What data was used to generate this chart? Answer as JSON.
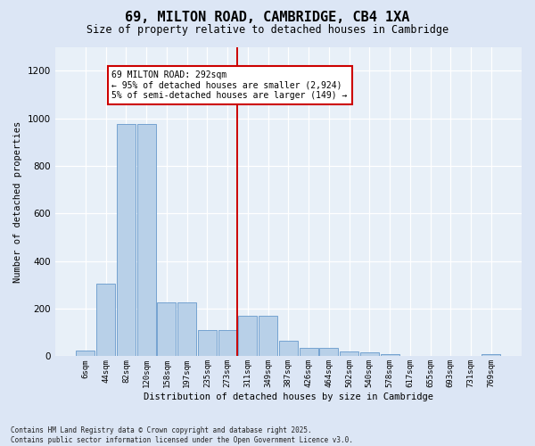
{
  "title_line1": "69, MILTON ROAD, CAMBRIDGE, CB4 1XA",
  "title_line2": "Size of property relative to detached houses in Cambridge",
  "xlabel": "Distribution of detached houses by size in Cambridge",
  "ylabel": "Number of detached properties",
  "footnote1": "Contains HM Land Registry data © Crown copyright and database right 2025.",
  "footnote2": "Contains public sector information licensed under the Open Government Licence v3.0.",
  "annotation_title": "69 MILTON ROAD: 292sqm",
  "annotation_line2": "← 95% of detached houses are smaller (2,924)",
  "annotation_line3": "5% of semi-detached houses are larger (149) →",
  "categories": [
    "6sqm",
    "44sqm",
    "82sqm",
    "120sqm",
    "158sqm",
    "197sqm",
    "235sqm",
    "273sqm",
    "311sqm",
    "349sqm",
    "387sqm",
    "426sqm",
    "464sqm",
    "502sqm",
    "540sqm",
    "578sqm",
    "617sqm",
    "655sqm",
    "693sqm",
    "731sqm",
    "769sqm"
  ],
  "bar_heights": [
    25,
    305,
    975,
    975,
    225,
    225,
    110,
    110,
    170,
    170,
    65,
    35,
    35,
    20,
    15,
    10,
    0,
    0,
    0,
    0,
    10
  ],
  "bar_color": "#b8d0e8",
  "bar_edge_color": "#6699cc",
  "vline_color": "#cc0000",
  "annotation_box_color": "#cc0000",
  "background_color": "#dce6f5",
  "plot_bg_color": "#e8f0f8",
  "ylim": [
    0,
    1300
  ],
  "yticks": [
    0,
    200,
    400,
    600,
    800,
    1000,
    1200
  ],
  "vline_pos": 7.5
}
